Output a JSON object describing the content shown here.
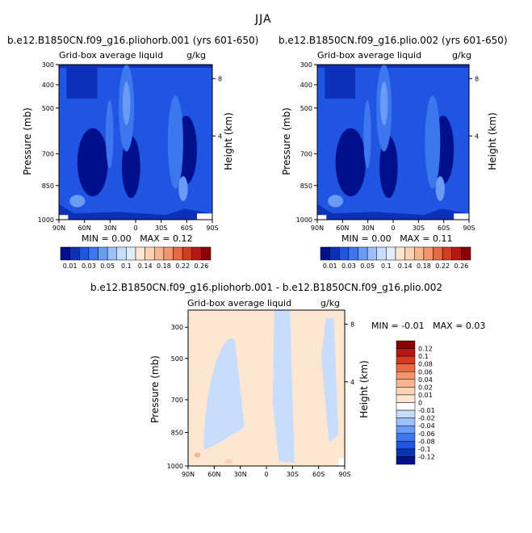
{
  "figure": {
    "title": "JJA",
    "panels": [
      {
        "title": "b.e12.B1850CN.f09_g16.pliohorb.001 (yrs 601-650)",
        "left_label": "Grid-box average liquid",
        "right_label": "g/kg",
        "y_title": "Pressure (mb)",
        "y2_title": "Height (km)",
        "min_label": "MIN =",
        "min_value": "0.00",
        "max_label": "MAX =",
        "max_value": "0.12"
      },
      {
        "title": "b.e12.B1850CN.f09_g16.plio.002 (yrs 601-650)",
        "left_label": "Grid-box average liquid",
        "right_label": "g/kg",
        "y_title": "Pressure (mb)",
        "y2_title": "Height (km)",
        "min_label": "MIN =",
        "min_value": "0.00",
        "max_label": "MAX =",
        "max_value": "0.11"
      },
      {
        "title": "b.e12.B1850CN.f09_g16.pliohorb.001 - b.e12.B1850CN.f09_g16.plio.002",
        "left_label": "Grid-box average liquid",
        "right_label": "g/kg",
        "y_title": "Pressure (mb)",
        "y2_title": "Height (km)",
        "min_label": "MIN =",
        "min_value": "-0.01",
        "max_label": "MAX =",
        "max_value": "0.03"
      }
    ]
  },
  "chart_data": [
    {
      "type": "heatmap",
      "title": "b.e12.B1850CN.f09_g16.pliohorb.001 (yrs 601-650)",
      "variable": "Grid-box average liquid",
      "units": "g/kg",
      "x_ticks": [
        "90N",
        "60N",
        "30N",
        "0",
        "30S",
        "60S",
        "90S"
      ],
      "y_ticks": [
        "300",
        "400",
        "500",
        "700",
        "850",
        "1000"
      ],
      "y2_ticks": [
        "8",
        "4"
      ],
      "ylabel": "Pressure (mb)",
      "y2label": "Height (km)",
      "min": 0.0,
      "max": 0.12,
      "colorbar_levels": [
        "0.01",
        "0.03",
        "0.05",
        "0.1",
        "0.14",
        "0.18",
        "0.22",
        "0.26"
      ],
      "colorbar_colors": [
        "#000f8c",
        "#0a31b8",
        "#1f55e0",
        "#3d77f0",
        "#6a9cf5",
        "#9cc0fa",
        "#c8dcfc",
        "#e3eefd",
        "#fde7d3",
        "#fbd2b4",
        "#f8b690",
        "#f2946c",
        "#e86a45",
        "#d43c22",
        "#b51712",
        "#8a0000"
      ]
    },
    {
      "type": "heatmap",
      "title": "b.e12.B1850CN.f09_g16.plio.002 (yrs 601-650)",
      "variable": "Grid-box average liquid",
      "units": "g/kg",
      "x_ticks": [
        "90N",
        "60N",
        "30N",
        "0",
        "30S",
        "60S",
        "90S"
      ],
      "y_ticks": [
        "300",
        "400",
        "500",
        "700",
        "850",
        "1000"
      ],
      "y2_ticks": [
        "8",
        "4"
      ],
      "ylabel": "Pressure (mb)",
      "y2label": "Height (km)",
      "min": 0.0,
      "max": 0.11,
      "colorbar_levels": [
        "0.01",
        "0.03",
        "0.05",
        "0.1",
        "0.14",
        "0.18",
        "0.22",
        "0.26"
      ],
      "colorbar_colors": [
        "#000f8c",
        "#0a31b8",
        "#1f55e0",
        "#3d77f0",
        "#6a9cf5",
        "#9cc0fa",
        "#c8dcfc",
        "#e3eefd",
        "#fde7d3",
        "#fbd2b4",
        "#f8b690",
        "#f2946c",
        "#e86a45",
        "#d43c22",
        "#b51712",
        "#8a0000"
      ]
    },
    {
      "type": "heatmap",
      "title": "b.e12.B1850CN.f09_g16.pliohorb.001 - b.e12.B1850CN.f09_g16.plio.002",
      "variable": "Grid-box average liquid",
      "units": "g/kg",
      "x_ticks": [
        "90N",
        "60N",
        "30N",
        "0",
        "30S",
        "60S",
        "90S"
      ],
      "y_ticks": [
        "300",
        "500",
        "700",
        "850",
        "1000"
      ],
      "y2_ticks": [
        "8",
        "4"
      ],
      "ylabel": "Pressure (mb)",
      "y2label": "Height (km)",
      "min": -0.01,
      "max": 0.03,
      "colorbar_levels": [
        "0.12",
        "0.1",
        "0.08",
        "0.06",
        "0.04",
        "0.02",
        "0.01",
        "0",
        "-0.01",
        "-0.02",
        "-0.04",
        "-0.06",
        "-0.08",
        "-0.1",
        "-0.12"
      ],
      "colorbar_colors": [
        "#8a0000",
        "#b51712",
        "#d43c22",
        "#e86a45",
        "#f2946c",
        "#f8b690",
        "#fbd2b4",
        "#fde7d3",
        "#ffffff",
        "#c8dcfc",
        "#9cc0fa",
        "#6a9cf5",
        "#3d77f0",
        "#1f55e0",
        "#0a31b8",
        "#000f8c"
      ]
    }
  ]
}
